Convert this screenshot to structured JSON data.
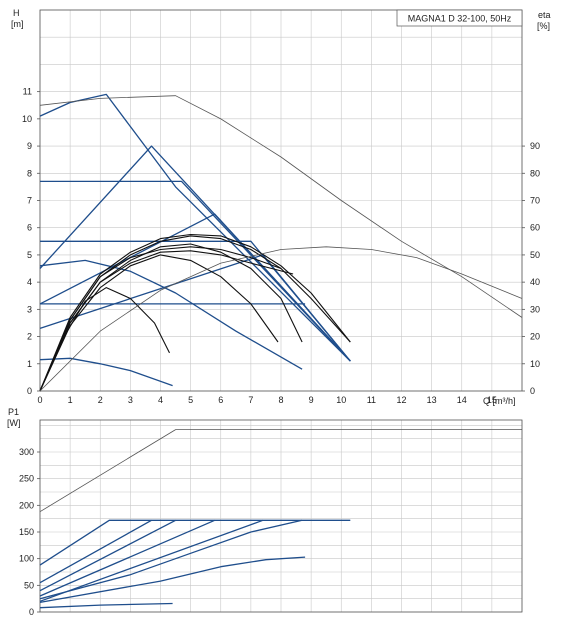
{
  "chart_data": [
    {
      "type": "line",
      "title": "MAGNA1 D 32-100, 50Hz",
      "xlabel": "Q [m³/h]",
      "ylabel_line1": "H",
      "ylabel_line2": "[m]",
      "y2label_line1": "eta",
      "y2label_line2": "[%]",
      "xlim": [
        0,
        16
      ],
      "ylim": [
        0,
        14
      ],
      "y2lim": [
        0,
        140
      ],
      "xticks": [
        "0",
        "1",
        "2",
        "3",
        "4",
        "5",
        "6",
        "7",
        "8",
        "9",
        "10",
        "11",
        "12",
        "13",
        "14",
        "15"
      ],
      "yticks": [
        "0",
        "1",
        "2",
        "3",
        "4",
        "5",
        "6",
        "7",
        "8",
        "9",
        "10",
        "11"
      ],
      "y2ticks": [
        "0",
        "10",
        "20",
        "30",
        "40",
        "50",
        "60",
        "70",
        "80",
        "90"
      ],
      "grid": true,
      "colors": {
        "pump_curve": "#1f4e8c",
        "efficiency_curve": "#111111",
        "twin_head_curve": "#555555"
      },
      "series": [
        {
          "kind": "head-proportional",
          "points": [
            [
              0,
              10.1
            ],
            [
              1,
              10.6
            ],
            [
              2.2,
              10.9
            ],
            [
              4.5,
              7.5
            ],
            [
              10.3,
              1.1
            ]
          ]
        },
        {
          "kind": "head-proportional",
          "points": [
            [
              0,
              4.5
            ],
            [
              3.7,
              9.0
            ],
            [
              10.3,
              1.1
            ]
          ]
        },
        {
          "kind": "head-proportional",
          "points": [
            [
              0,
              3.2
            ],
            [
              5.8,
              6.5
            ],
            [
              10.3,
              1.1
            ]
          ]
        },
        {
          "kind": "head-proportional",
          "points": [
            [
              0,
              2.3
            ],
            [
              7.4,
              5.0
            ],
            [
              10.3,
              1.1
            ]
          ]
        },
        {
          "kind": "head-constant",
          "points": [
            [
              0,
              7.7
            ],
            [
              4.7,
              7.7
            ],
            [
              10.3,
              1.1
            ]
          ]
        },
        {
          "kind": "head-constant",
          "points": [
            [
              0,
              5.5
            ],
            [
              7.0,
              5.5
            ],
            [
              10.3,
              1.1
            ]
          ]
        },
        {
          "kind": "head-constant",
          "points": [
            [
              0,
              3.2
            ],
            [
              8.8,
              3.2
            ]
          ]
        },
        {
          "kind": "speed-curve",
          "points": [
            [
              0,
              4.6
            ],
            [
              1.5,
              4.8
            ],
            [
              3,
              4.4
            ],
            [
              4.5,
              3.6
            ],
            [
              6.5,
              2.2
            ],
            [
              8.7,
              0.8
            ]
          ]
        },
        {
          "kind": "speed-curve",
          "points": [
            [
              0,
              1.15
            ],
            [
              1,
              1.2
            ],
            [
              2,
              1.0
            ],
            [
              3,
              0.75
            ],
            [
              4.4,
              0.2
            ]
          ]
        },
        {
          "kind": "twin-head-max",
          "points": [
            [
              0,
              10.5
            ],
            [
              2,
              10.75
            ],
            [
              4.5,
              10.85
            ],
            [
              6,
              10.0
            ],
            [
              8,
              8.6
            ],
            [
              10,
              7.0
            ],
            [
              12,
              5.5
            ],
            [
              14,
              4.2
            ],
            [
              16,
              2.7
            ]
          ]
        },
        {
          "kind": "efficiency",
          "points": [
            [
              0,
              0
            ],
            [
              0.8,
              20
            ],
            [
              1.5,
              33
            ],
            [
              2.2,
              38
            ],
            [
              3,
              34
            ],
            [
              3.8,
              25
            ],
            [
              4.3,
              14
            ]
          ]
        },
        {
          "kind": "efficiency",
          "points": [
            [
              0,
              0
            ],
            [
              1,
              24
            ],
            [
              2,
              38
            ],
            [
              3,
              46
            ],
            [
              4,
              50
            ],
            [
              5,
              48
            ],
            [
              6,
              42
            ],
            [
              7,
              32
            ],
            [
              7.9,
              18
            ]
          ]
        },
        {
          "kind": "efficiency",
          "points": [
            [
              0,
              0
            ],
            [
              1,
              25
            ],
            [
              2,
              40
            ],
            [
              3,
              48
            ],
            [
              4,
              53
            ],
            [
              5,
              54
            ],
            [
              6,
              51
            ],
            [
              7,
              45
            ],
            [
              8,
              34
            ],
            [
              8.7,
              18
            ]
          ]
        },
        {
          "kind": "efficiency",
          "points": [
            [
              0,
              0
            ],
            [
              1,
              26
            ],
            [
              2,
              42
            ],
            [
              3,
              50
            ],
            [
              4,
              55
            ],
            [
              5,
              57
            ],
            [
              6,
              56
            ],
            [
              7,
              52
            ],
            [
              8,
              45
            ],
            [
              9,
              34
            ],
            [
              10.3,
              18
            ]
          ]
        },
        {
          "kind": "efficiency",
          "points": [
            [
              0,
              0
            ],
            [
              1,
              27
            ],
            [
              2,
              43
            ],
            [
              3,
              51
            ],
            [
              4,
              56
            ],
            [
              5,
              57.5
            ],
            [
              6,
              57
            ],
            [
              7,
              53
            ],
            [
              8,
              46
            ],
            [
              9,
              36
            ],
            [
              10.3,
              18
            ]
          ]
        },
        {
          "kind": "efficiency",
          "points": [
            [
              0,
              0
            ],
            [
              1,
              26
            ],
            [
              2,
              42
            ],
            [
              3,
              49
            ],
            [
              4,
              52
            ],
            [
              5,
              53
            ],
            [
              6,
              52
            ],
            [
              7,
              49
            ],
            [
              8,
              45
            ]
          ]
        },
        {
          "kind": "efficiency",
          "points": [
            [
              0,
              0
            ],
            [
              1,
              25
            ],
            [
              2,
              40
            ],
            [
              3,
              47
            ],
            [
              4,
              51
            ],
            [
              5,
              51.5
            ],
            [
              6,
              50
            ],
            [
              7,
              47
            ],
            [
              8.4,
              43
            ]
          ]
        },
        {
          "kind": "twin-efficiency",
          "points": [
            [
              0,
              0
            ],
            [
              2,
              22
            ],
            [
              4,
              37
            ],
            [
              6,
              47
            ],
            [
              8,
              52
            ],
            [
              9.5,
              53
            ],
            [
              11,
              52
            ],
            [
              12.5,
              49
            ],
            [
              14,
              43
            ],
            [
              16,
              34
            ]
          ]
        }
      ]
    },
    {
      "type": "line",
      "xlim": [
        0,
        16
      ],
      "ylim": [
        0,
        360
      ],
      "ylabel_line1": "P1",
      "ylabel_line2": "[W]",
      "yticks": [
        "0",
        "50",
        "100",
        "150",
        "200",
        "250",
        "300"
      ],
      "grid": true,
      "series": [
        {
          "kind": "power-max",
          "points": [
            [
              0,
              88
            ],
            [
              2.3,
              172
            ],
            [
              10.3,
              172
            ]
          ]
        },
        {
          "kind": "power",
          "points": [
            [
              0,
              55
            ],
            [
              3.7,
              172
            ]
          ]
        },
        {
          "kind": "power",
          "points": [
            [
              0,
              40
            ],
            [
              4.5,
              172
            ]
          ]
        },
        {
          "kind": "power",
          "points": [
            [
              0,
              30
            ],
            [
              5.8,
              172
            ]
          ]
        },
        {
          "kind": "power",
          "points": [
            [
              0,
              20
            ],
            [
              7.4,
              172
            ]
          ]
        },
        {
          "kind": "power",
          "points": [
            [
              0,
              25
            ],
            [
              3,
              70
            ],
            [
              5,
              110
            ],
            [
              7,
              150
            ],
            [
              8.7,
              172
            ]
          ]
        },
        {
          "kind": "power",
          "points": [
            [
              0,
              18
            ],
            [
              4,
              58
            ],
            [
              6,
              85
            ],
            [
              7.5,
              98
            ],
            [
              8.8,
              103
            ]
          ]
        },
        {
          "kind": "power",
          "points": [
            [
              0,
              8
            ],
            [
              2,
              13
            ],
            [
              4.4,
              16
            ]
          ]
        },
        {
          "kind": "twin-power",
          "points": [
            [
              0,
              188
            ],
            [
              4.5,
              342
            ],
            [
              16,
              342
            ]
          ]
        }
      ]
    }
  ]
}
